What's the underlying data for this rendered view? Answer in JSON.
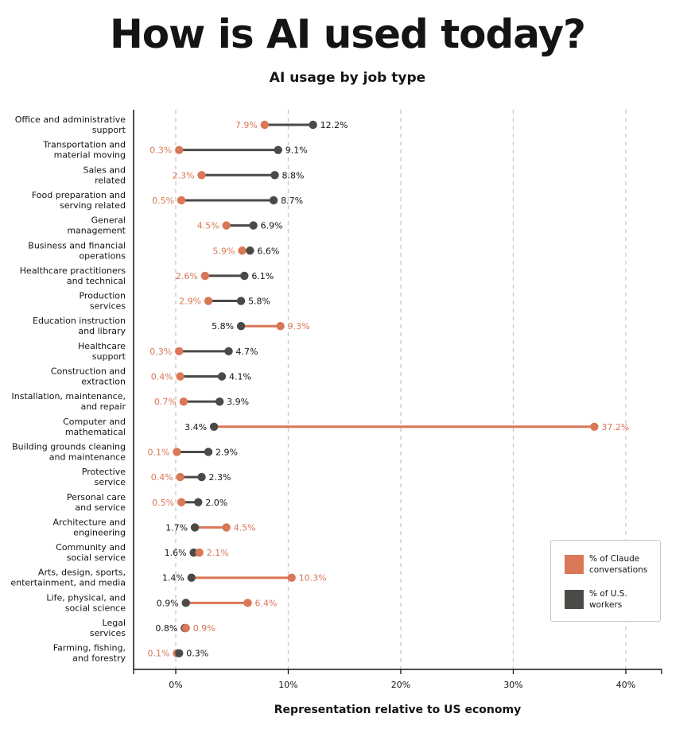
{
  "title": "How is AI used today?",
  "subtitle": "AI usage by job type",
  "colors": {
    "claude": "#D97757",
    "workers": "#4B4A47",
    "grid": "#c8c8c8",
    "axis": "#141413"
  },
  "legend": {
    "items": [
      {
        "label_lines": [
          "% of Claude",
          "conversations"
        ],
        "color": "#D97757"
      },
      {
        "label_lines": [
          "% of U.S.",
          "workers"
        ],
        "color": "#4B4A47"
      }
    ]
  },
  "chart_data": {
    "type": "dumbbell",
    "title": "How is AI used today?",
    "subtitle": "AI usage by job type",
    "xlabel": "Representation relative to US economy",
    "ylabel": "",
    "xlim": [
      -4,
      43
    ],
    "xticks": [
      0,
      10,
      20,
      30,
      40
    ],
    "xtick_labels": [
      "0%",
      "10%",
      "20%",
      "30%",
      "40%"
    ],
    "grid": "vertical dashed",
    "legend_position": "bottom-right",
    "series": [
      {
        "name": "% of Claude conversations",
        "key": "claude"
      },
      {
        "name": "% of U.S. workers",
        "key": "workers"
      }
    ],
    "categories": [
      {
        "label_lines": [
          "Office and administrative",
          "support"
        ],
        "claude": 7.9,
        "workers": 12.2
      },
      {
        "label_lines": [
          "Transportation and",
          "material moving"
        ],
        "claude": 0.3,
        "workers": 9.1
      },
      {
        "label_lines": [
          "Sales and",
          "related"
        ],
        "claude": 2.3,
        "workers": 8.8
      },
      {
        "label_lines": [
          "Food preparation and",
          "serving related"
        ],
        "claude": 0.5,
        "workers": 8.7
      },
      {
        "label_lines": [
          "General",
          "management"
        ],
        "claude": 4.5,
        "workers": 6.9
      },
      {
        "label_lines": [
          "Business and financial",
          "operations"
        ],
        "claude": 5.9,
        "workers": 6.6
      },
      {
        "label_lines": [
          "Healthcare practitioners",
          "and technical"
        ],
        "claude": 2.6,
        "workers": 6.1
      },
      {
        "label_lines": [
          "Production",
          "services"
        ],
        "claude": 2.9,
        "workers": 5.8
      },
      {
        "label_lines": [
          "Education instruction",
          "and library"
        ],
        "claude": 9.3,
        "workers": 5.8
      },
      {
        "label_lines": [
          "Healthcare",
          "support"
        ],
        "claude": 0.3,
        "workers": 4.7
      },
      {
        "label_lines": [
          "Construction and",
          "extraction"
        ],
        "claude": 0.4,
        "workers": 4.1
      },
      {
        "label_lines": [
          "Installation, maintenance,",
          "and repair"
        ],
        "claude": 0.7,
        "workers": 3.9
      },
      {
        "label_lines": [
          "Computer and",
          "mathematical"
        ],
        "claude": 37.2,
        "workers": 3.4
      },
      {
        "label_lines": [
          "Building grounds cleaning",
          "and maintenance"
        ],
        "claude": 0.1,
        "workers": 2.9
      },
      {
        "label_lines": [
          "Protective",
          "service"
        ],
        "claude": 0.4,
        "workers": 2.3
      },
      {
        "label_lines": [
          "Personal care",
          "and service"
        ],
        "claude": 0.5,
        "workers": 2.0
      },
      {
        "label_lines": [
          "Architecture and",
          "engineering"
        ],
        "claude": 4.5,
        "workers": 1.7
      },
      {
        "label_lines": [
          "Community and",
          "social service"
        ],
        "claude": 2.1,
        "workers": 1.6
      },
      {
        "label_lines": [
          "Arts, design, sports,",
          "entertainment, and media"
        ],
        "claude": 10.3,
        "workers": 1.4
      },
      {
        "label_lines": [
          "Life, physical, and",
          "social science"
        ],
        "claude": 6.4,
        "workers": 0.9
      },
      {
        "label_lines": [
          "Legal",
          "services"
        ],
        "claude": 0.9,
        "workers": 0.8
      },
      {
        "label_lines": [
          "Farming, fishing,",
          "and forestry"
        ],
        "claude": 0.1,
        "workers": 0.3
      }
    ]
  }
}
